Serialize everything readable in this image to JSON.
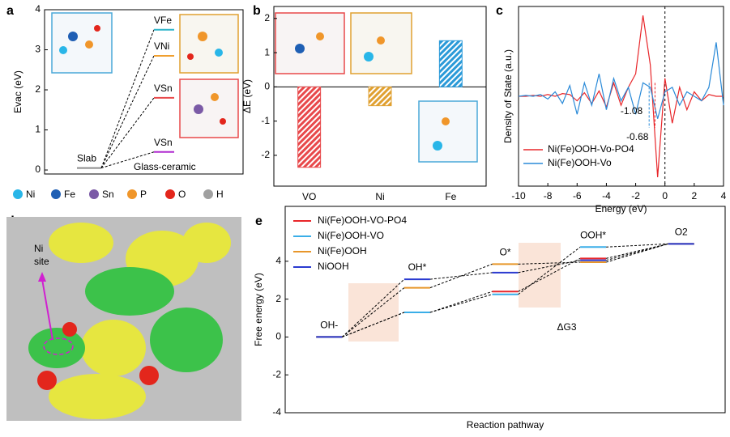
{
  "panel_labels": [
    "a",
    "b",
    "c",
    "d",
    "e"
  ],
  "element_legend": [
    {
      "name": "Ni",
      "color": "#29b6e8"
    },
    {
      "name": "Fe",
      "color": "#1f5fb4"
    },
    {
      "name": "Sn",
      "color": "#7b5aa6"
    },
    {
      "name": "P",
      "color": "#f0962a"
    },
    {
      "name": "O",
      "color": "#e3261c"
    },
    {
      "name": "H",
      "color": "#a0a0a0"
    }
  ],
  "panel_d": {
    "annotation": [
      "Ni",
      "site"
    ]
  },
  "chart_data": [
    {
      "type": "energy-levels",
      "ylabel": "Evac (eV)",
      "ylim": [
        -0.1,
        4
      ],
      "yticks": [
        0,
        1,
        2,
        3,
        4
      ],
      "levels": [
        {
          "name": "Slab",
          "value": 0.05,
          "color": "#8c8c8c"
        },
        {
          "name": "VFe",
          "value": 3.5,
          "color": "#2bb3c9"
        },
        {
          "name": "VNi",
          "value": 2.85,
          "color": "#f0a030"
        },
        {
          "name": "VSn",
          "value": 1.8,
          "color": "#e8484a"
        },
        {
          "name": "VSn",
          "value": 0.45,
          "color": "#b02bd0"
        }
      ],
      "annotation": "Glass-ceramic"
    },
    {
      "type": "bar",
      "ylabel": "ΔE (eV)",
      "categories": [
        "VO",
        "Ni",
        "Fe"
      ],
      "values": [
        -2.35,
        -0.55,
        1.35
      ],
      "colors": [
        "#e8484a",
        "#e0a030",
        "#2a9ad8"
      ],
      "hatch": true,
      "ylim": [
        -2.9,
        2.35
      ],
      "yticks": [
        -2,
        -1,
        0,
        1,
        2
      ]
    },
    {
      "type": "line",
      "xlabel": "Energy (eV)",
      "ylabel": "Density of State (a.u.)",
      "x": [
        -10,
        -9.5,
        -9,
        -8.5,
        -8,
        -7.5,
        -7,
        -6.5,
        -6,
        -5.5,
        -5,
        -4.5,
        -4,
        -3.5,
        -3,
        -2.5,
        -2,
        -1.5,
        -1,
        -0.5,
        0,
        0.5,
        1,
        1.5,
        2,
        2.5,
        3,
        3.5,
        4
      ],
      "series": [
        {
          "name": "Ni(Fe)OOH-Vo-PO4",
          "color": "#e8262a",
          "values": [
            0,
            0,
            0.01,
            0,
            0.02,
            0,
            0.03,
            0.02,
            -0.05,
            0.04,
            -0.08,
            0.06,
            -0.12,
            0.15,
            -0.1,
            0.1,
            0.25,
            0.9,
            0.35,
            -0.9,
            0.2,
            -0.3,
            0.1,
            -0.15,
            0.05,
            -0.05,
            0.02,
            0,
            0
          ]
        },
        {
          "name": "Ni(Fe)OOH-Vo",
          "color": "#2a8ad8",
          "values": [
            0,
            0.01,
            0,
            0.02,
            -0.03,
            0.05,
            -0.08,
            0.12,
            -0.2,
            0.15,
            -0.1,
            0.25,
            -0.15,
            0.2,
            -0.05,
            0.1,
            -0.2,
            0.15,
            0.1,
            -0.25,
            0.05,
            0.1,
            -0.1,
            0.05,
            0,
            -0.05,
            0.1,
            0.6,
            -0.1
          ]
        }
      ],
      "xlim": [
        -10,
        4
      ],
      "xticks": [
        -10,
        -8,
        -6,
        -4,
        -2,
        0,
        2,
        4
      ],
      "ylim": [
        -1,
        1
      ],
      "annotations": [
        {
          "value": -1.08,
          "color": "#2a8ad8"
        },
        {
          "value": -0.68,
          "color": "#e8262a"
        }
      ],
      "legend": "lower left"
    },
    {
      "type": "levels",
      "xlabel": "Reaction pathway",
      "ylabel": "Free energy (eV)",
      "categories": [
        "OH-",
        "OH*",
        "O*",
        "OOH*",
        "O2"
      ],
      "series": [
        {
          "name": "Ni(Fe)OOH-VO-PO4",
          "color": "#e8262a",
          "values": [
            0,
            1.3,
            2.4,
            4.15,
            4.92
          ]
        },
        {
          "name": "Ni(Fe)OOH-VO",
          "color": "#3aaee8",
          "values": [
            0,
            1.3,
            2.25,
            4.75,
            4.92
          ]
        },
        {
          "name": "Ni(Fe)OOH",
          "color": "#e8962a",
          "values": [
            0,
            2.6,
            3.85,
            3.95,
            4.92
          ]
        },
        {
          "name": "NiOOH",
          "color": "#2a3ad0",
          "values": [
            0,
            3.05,
            3.4,
            4.05,
            4.92
          ]
        }
      ],
      "ylim": [
        -4,
        6.9
      ],
      "yticks": [
        -4,
        -2,
        0,
        2,
        4
      ],
      "annotation": "ΔG3",
      "legend": "upper left"
    }
  ]
}
